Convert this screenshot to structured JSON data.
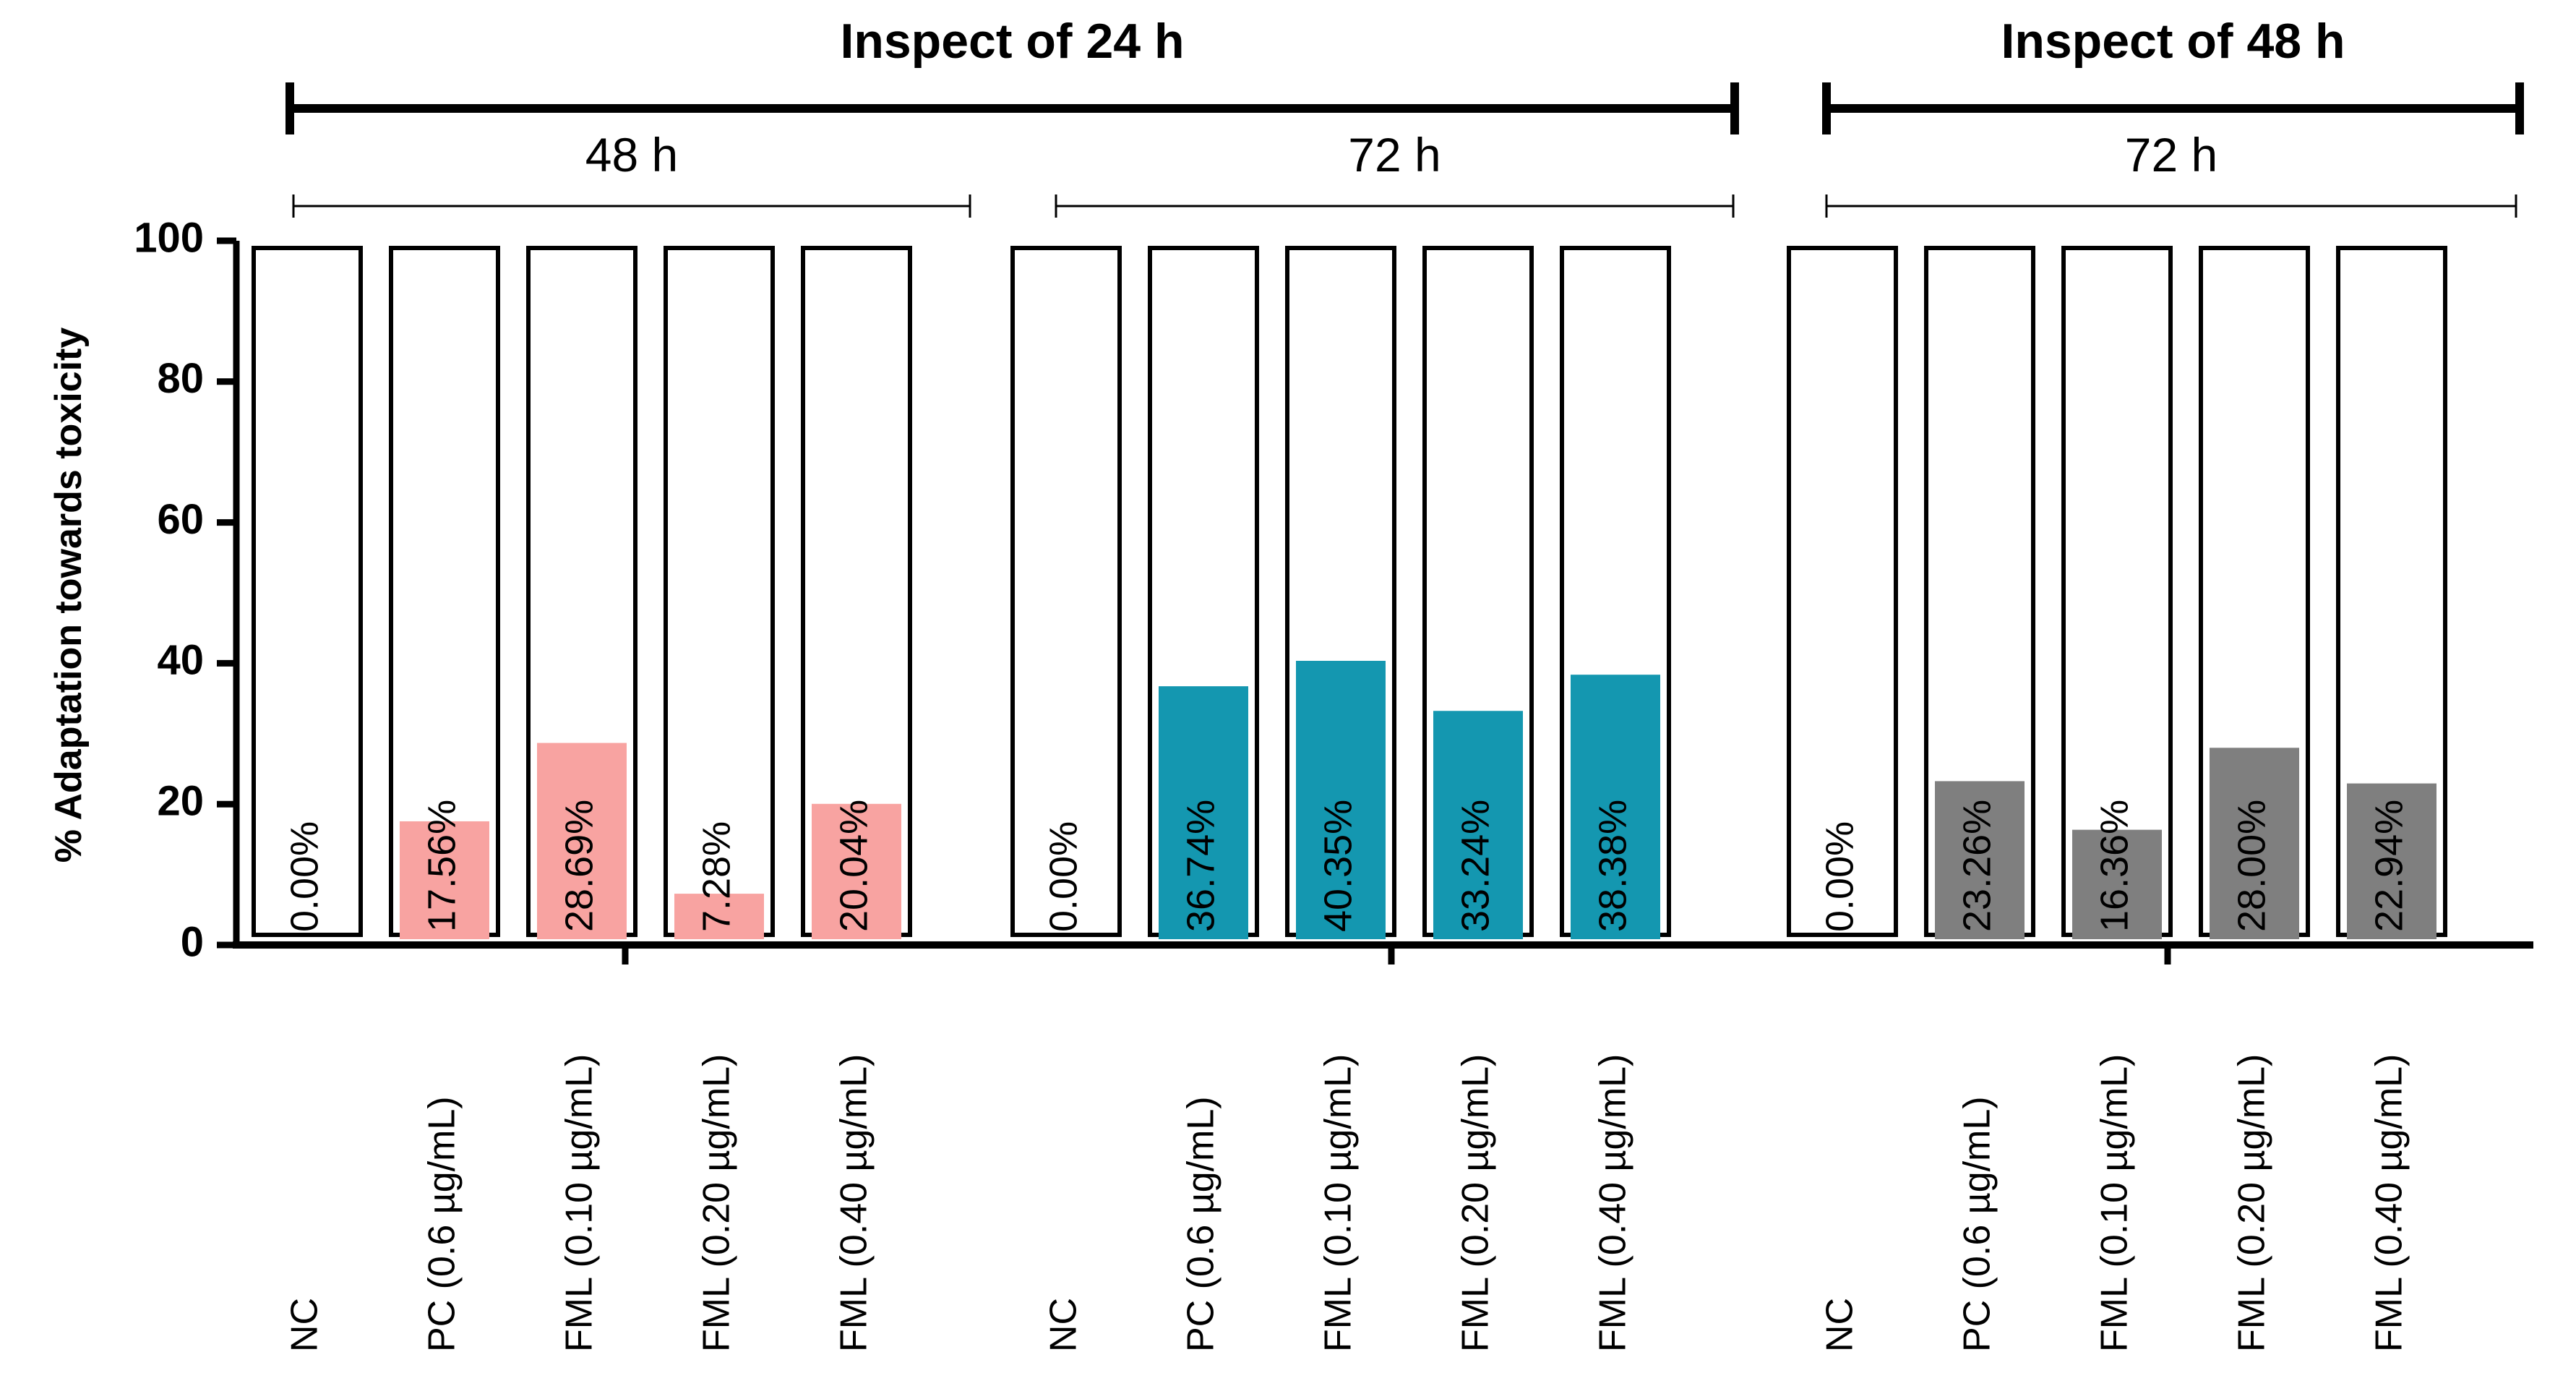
{
  "chart_data": {
    "type": "bar",
    "ylabel": "% Adaptation towards toxicity",
    "ylim": [
      0,
      100
    ],
    "yticks": [
      0,
      20,
      40,
      60,
      80,
      100
    ],
    "inspections": [
      {
        "label": "Inspect of 24 h"
      },
      {
        "label": "Inspect of 48 h"
      }
    ],
    "groups": [
      {
        "period": "48 h",
        "inspection": 0,
        "color": "#F8A3A1",
        "categories": [
          "NC",
          "PC (0.6 µg/mL)",
          "FML (0.10 µg/mL)",
          "FML (0.20 µg/mL)",
          "FML (0.40 µg/mL)"
        ],
        "values": [
          0.0,
          17.56,
          28.69,
          7.28,
          20.04
        ],
        "labels": [
          "0.00%",
          "17.56%",
          "28.69%",
          "7.28%",
          "20.04%"
        ]
      },
      {
        "period": "72 h",
        "inspection": 0,
        "color": "#1497B0",
        "categories": [
          "NC",
          "PC (0.6 µg/mL)",
          "FML (0.10 µg/mL)",
          "FML (0.20 µg/mL)",
          "FML (0.40 µg/mL)"
        ],
        "values": [
          0.0,
          36.74,
          40.35,
          33.24,
          38.38
        ],
        "labels": [
          "0.00%",
          "36.74%",
          "40.35%",
          "33.24%",
          "38.38%"
        ]
      },
      {
        "period": "72 h",
        "inspection": 1,
        "color": "#7F7F7F",
        "categories": [
          "NC",
          "PC (0.6 µg/mL)",
          "FML (0.10 µg/mL)",
          "FML (0.20 µg/mL)",
          "FML (0.40 µg/mL)"
        ],
        "values": [
          0.0,
          23.26,
          16.36,
          28.0,
          22.94
        ],
        "labels": [
          "0.00%",
          "23.26%",
          "16.36%",
          "28.00%",
          "22.94%"
        ]
      }
    ]
  }
}
